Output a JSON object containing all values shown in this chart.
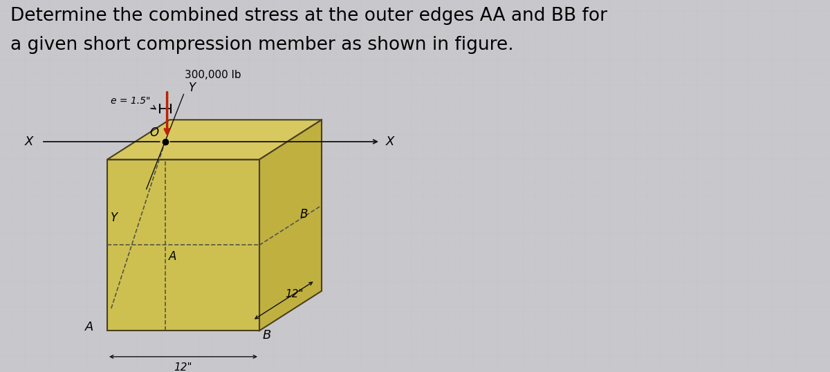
{
  "title_line1": "Determine the combined stress at the outer edges AA and BB for",
  "title_line2": "a given short compression member as shown in figure.",
  "title_fontsize": 19,
  "bg_color": "#c8c8cc",
  "bg_color_right": "#d8d8e0",
  "box_color_top": "#d8c860",
  "box_color_front": "#cdc050",
  "box_color_right": "#c0b040",
  "box_outline_color": "#4a4020",
  "force_color": "#bb2200",
  "arrow_color": "#111111",
  "dashed_color": "#555544",
  "dim_color": "#111111",
  "label_e": "e = 1.5\"",
  "label_force": "300,000 lb",
  "label_12_bottom": "12\"",
  "label_12_right": "12\"",
  "label_O": "O",
  "label_A_front": "A",
  "label_B_right": "B",
  "label_A_corner": "A",
  "label_B_bottom": "B",
  "label_X_left": "X",
  "label_X_right": "X",
  "label_Y_top": "Y",
  "label_Y_diag": "Y"
}
